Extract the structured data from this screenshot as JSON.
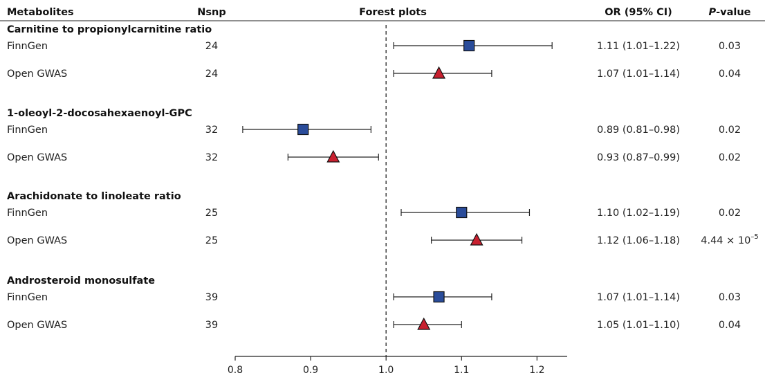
{
  "header": {
    "metabolites": "Metabolites",
    "nsnp": "Nsnp",
    "forest": "Forest plots",
    "or_ci": "OR (95% CI)",
    "pvalue_italic": "P",
    "pvalue_rest": "-value"
  },
  "colors": {
    "finngen": "#2a4c9a",
    "opengwas": "#c8202f",
    "marker_stroke": "#111111",
    "ref_line": "#333333"
  },
  "chart_data": {
    "type": "forest",
    "title": "Forest plots",
    "xlim": [
      0.8,
      1.24
    ],
    "xticks": [
      "0.8",
      "0.9",
      "1.0",
      "1.1",
      "1.2"
    ],
    "reference": 1.0,
    "groups": [
      {
        "name": "Carnitine to propionylcarnitine ratio",
        "rows": [
          {
            "source": "FinnGen",
            "marker": "square",
            "nsnp": "24",
            "or": 1.11,
            "lo": 1.01,
            "hi": 1.22,
            "or_ci": "1.11 (1.01–1.22)",
            "p": "0.03"
          },
          {
            "source": "Open GWAS",
            "marker": "triangle",
            "nsnp": "24",
            "or": 1.07,
            "lo": 1.01,
            "hi": 1.14,
            "or_ci": "1.07 (1.01–1.14)",
            "p": "0.04"
          }
        ]
      },
      {
        "name": "1-oleoyl-2-docosahexaenoyl-GPC",
        "rows": [
          {
            "source": "FinnGen",
            "marker": "square",
            "nsnp": "32",
            "or": 0.89,
            "lo": 0.81,
            "hi": 0.98,
            "or_ci": "0.89 (0.81–0.98)",
            "p": "0.02"
          },
          {
            "source": "Open GWAS",
            "marker": "triangle",
            "nsnp": "32",
            "or": 0.93,
            "lo": 0.87,
            "hi": 0.99,
            "or_ci": "0.93 (0.87–0.99)",
            "p": "0.02"
          }
        ]
      },
      {
        "name": "Arachidonate to linoleate ratio",
        "rows": [
          {
            "source": "FinnGen",
            "marker": "square",
            "nsnp": "25",
            "or": 1.1,
            "lo": 1.02,
            "hi": 1.19,
            "or_ci": "1.10 (1.02–1.19)",
            "p": "0.02"
          },
          {
            "source": "Open GWAS",
            "marker": "triangle",
            "nsnp": "25",
            "or": 1.12,
            "lo": 1.06,
            "hi": 1.18,
            "or_ci": "1.12 (1.06–1.18)",
            "p": "4.44 × 10",
            "p_exp": "–5"
          }
        ]
      },
      {
        "name": "Androsteroid monosulfate",
        "rows": [
          {
            "source": "FinnGen",
            "marker": "square",
            "nsnp": "39",
            "or": 1.07,
            "lo": 1.01,
            "hi": 1.14,
            "or_ci": "1.07 (1.01–1.14)",
            "p": "0.03"
          },
          {
            "source": "Open GWAS",
            "marker": "triangle",
            "nsnp": "39",
            "or": 1.05,
            "lo": 1.01,
            "hi": 1.1,
            "or_ci": "1.05 (1.01–1.10)",
            "p": "0.04"
          }
        ]
      }
    ]
  }
}
